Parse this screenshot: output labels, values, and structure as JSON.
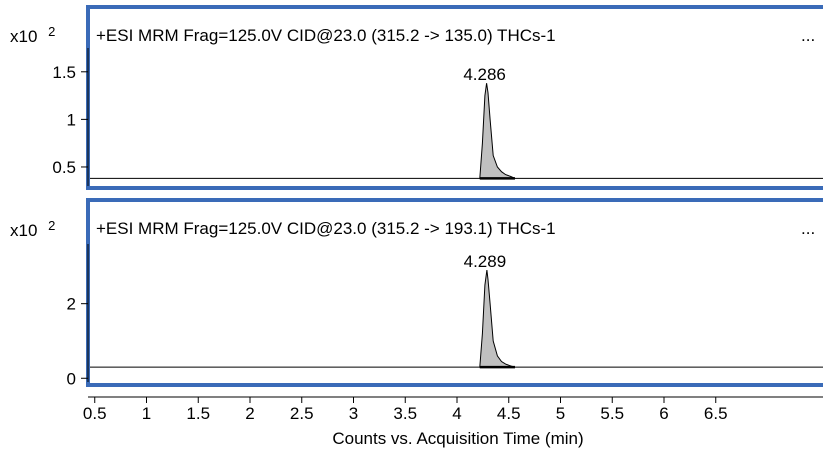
{
  "chart_data": {
    "type": "line",
    "xlabel": "Counts vs. Acquisition Time (min)",
    "xlim": [
      0,
      7
    ],
    "x_ticks": [
      "0.5",
      "1",
      "1.5",
      "2",
      "2.5",
      "3",
      "3.5",
      "4",
      "4.5",
      "5",
      "5.5",
      "6",
      "6.5"
    ],
    "border_color": "#3a6bb8",
    "peak_fill": "#c0c0c0",
    "panels": [
      {
        "title": "+ESI MRM Frag=125.0V CID@23.0 (315.2 -> 135.0) THCs-1",
        "ellipsis": "...",
        "multiplier_base": "x10",
        "multiplier_exp": "2",
        "ylim": [
          0.3,
          1.75
        ],
        "y_ticks": [
          "0.5",
          "1",
          "1.5"
        ],
        "baseline": 0.38,
        "peak": {
          "label": "4.286",
          "rt": 4.286,
          "apex": 1.38
        },
        "series": [
          {
            "x": [
              0.0,
              4.22,
              4.245,
              4.27,
              4.286,
              4.3,
              4.32,
              4.35,
              4.39,
              4.43,
              4.47,
              4.52,
              4.56,
              7.0
            ],
            "y": [
              0.38,
              0.38,
              0.75,
              1.25,
              1.38,
              1.28,
              1.0,
              0.62,
              0.5,
              0.45,
              0.42,
              0.4,
              0.38,
              0.38
            ]
          }
        ]
      },
      {
        "title": "+ESI MRM Frag=125.0V CID@23.0 (315.2 -> 193.1) THCs-1",
        "ellipsis": "...",
        "multiplier_base": "x10",
        "multiplier_exp": "2",
        "ylim": [
          -0.1,
          3.6
        ],
        "y_ticks": [
          "0",
          "2"
        ],
        "baseline": 0.3,
        "peak": {
          "label": "4.289",
          "rt": 4.289,
          "apex": 2.9
        },
        "series": [
          {
            "x": [
              0.0,
              4.22,
              4.245,
              4.27,
              4.289,
              4.3,
              4.32,
              4.35,
              4.39,
              4.43,
              4.47,
              4.52,
              4.56,
              7.0
            ],
            "y": [
              0.3,
              0.3,
              1.2,
              2.5,
              2.9,
              2.65,
              2.0,
              1.0,
              0.6,
              0.45,
              0.38,
              0.33,
              0.3,
              0.3
            ]
          }
        ]
      }
    ]
  }
}
